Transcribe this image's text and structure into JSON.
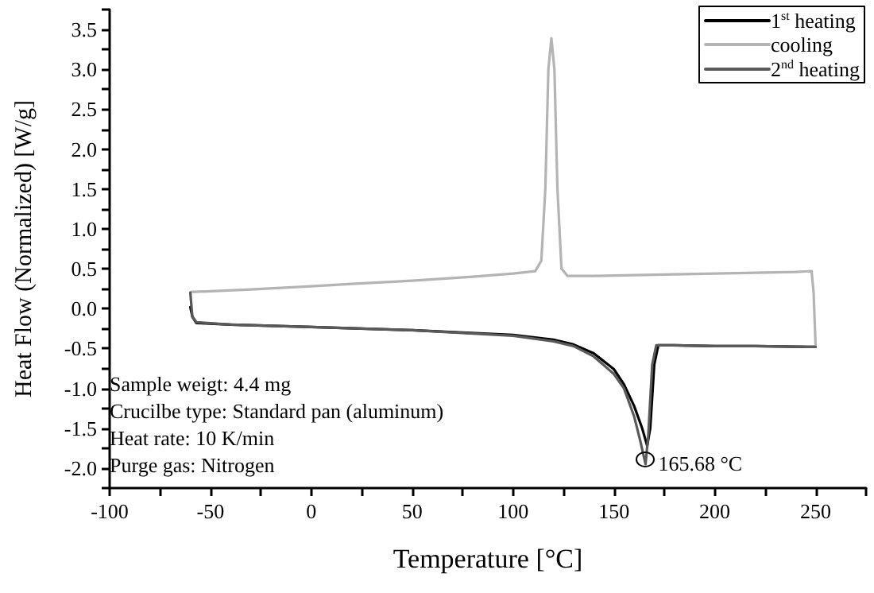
{
  "chart_data": {
    "type": "line",
    "xlabel": "Temperature [°C]",
    "ylabel": "Heat Flow (Normalized) [W/g]",
    "xlim": [
      -100,
      275
    ],
    "ylim": [
      -2.25,
      3.75
    ],
    "xticks": [
      -100,
      {
        "value": -75,
        "label": null
      },
      -50,
      {
        "value": -25,
        "label": null
      },
      0,
      {
        "value": 25,
        "label": null
      },
      50,
      {
        "value": 75,
        "label": null
      },
      100,
      {
        "value": 125,
        "label": null
      },
      150,
      {
        "value": 175,
        "label": null
      },
      200,
      {
        "value": 225,
        "label": null
      },
      250,
      {
        "value": 275,
        "label": null
      }
    ],
    "yticks": [
      {
        "value": -2.25,
        "label": null
      },
      {
        "value": -2,
        "label": "-2.0"
      },
      {
        "value": -1.75,
        "label": null
      },
      {
        "value": -1.5,
        "label": "-1.5"
      },
      {
        "value": -1.25,
        "label": null
      },
      {
        "value": -1,
        "label": "-1.0"
      },
      {
        "value": -0.75,
        "label": null
      },
      {
        "value": -0.5,
        "label": "-0.5"
      },
      {
        "value": -0.25,
        "label": null
      },
      {
        "value": 0,
        "label": "0.0"
      },
      {
        "value": 0.25,
        "label": null
      },
      {
        "value": 0.5,
        "label": "0.5"
      },
      {
        "value": 0.75,
        "label": null
      },
      {
        "value": 1,
        "label": "1.0"
      },
      {
        "value": 1.25,
        "label": null
      },
      {
        "value": 1.5,
        "label": "1.5"
      },
      {
        "value": 1.75,
        "label": null
      },
      {
        "value": 2,
        "label": "2.0"
      },
      {
        "value": 2.25,
        "label": null
      },
      {
        "value": 2.5,
        "label": "2.5"
      },
      {
        "value": 2.75,
        "label": null
      },
      {
        "value": 3,
        "label": "3.0"
      },
      {
        "value": 3.25,
        "label": null
      },
      {
        "value": 3.5,
        "label": "3.5"
      },
      {
        "value": 3.75,
        "label": null
      }
    ],
    "grid": false,
    "legend": "top right",
    "marker": "none",
    "line_style": "solid",
    "series": [
      {
        "name": "1$^{st}$ heating",
        "color": "#000000",
        "x": [
          -60,
          -59,
          -57,
          -40,
          0,
          50,
          100,
          120,
          130,
          140,
          150,
          155,
          160,
          164,
          166.5,
          168,
          170,
          172,
          180,
          200,
          220,
          249,
          250
        ],
        "values": [
          0.02,
          -0.1,
          -0.18,
          -0.2,
          -0.23,
          -0.27,
          -0.33,
          -0.39,
          -0.45,
          -0.56,
          -0.76,
          -0.95,
          -1.22,
          -1.5,
          -1.72,
          -1.5,
          -0.7,
          -0.46,
          -0.46,
          -0.47,
          -0.47,
          -0.48,
          -0.48
        ]
      },
      {
        "name": "cooling",
        "color": "#b4b4b4",
        "x": [
          250,
          249,
          248,
          240,
          220,
          200,
          180,
          160,
          140,
          127,
          124,
          122,
          120.5,
          119,
          117.5,
          116,
          114,
          111,
          100,
          80,
          50,
          20,
          0,
          -30,
          -58,
          -59.5
        ],
        "values": [
          -0.48,
          0.2,
          0.47,
          0.46,
          0.45,
          0.44,
          0.43,
          0.42,
          0.41,
          0.41,
          0.5,
          1.5,
          3.0,
          3.39,
          3.0,
          1.5,
          0.6,
          0.47,
          0.44,
          0.4,
          0.35,
          0.31,
          0.28,
          0.24,
          0.21,
          0.21
        ]
      },
      {
        "name": "2$^{nd}$ heating",
        "color": "#5a5a5a",
        "x": [
          -60,
          -59,
          -57,
          -40,
          0,
          50,
          100,
          120,
          130,
          140,
          150,
          155,
          160,
          163,
          165.68,
          167,
          169,
          171,
          180,
          200,
          220,
          249,
          250
        ],
        "values": [
          0.2,
          -0.1,
          -0.17,
          -0.2,
          -0.23,
          -0.27,
          -0.34,
          -0.41,
          -0.47,
          -0.6,
          -0.82,
          -1.0,
          -1.35,
          -1.65,
          -1.95,
          -1.6,
          -0.7,
          -0.46,
          -0.46,
          -0.47,
          -0.47,
          -0.48,
          -0.48
        ]
      }
    ],
    "annotations": [
      "Sample weigt: 4.4 mg",
      "Crucilbe type: Standard pan (aluminum)",
      "Heat rate: 10 K/min",
      "Purge gas: Nitrogen",
      {
        "text": "165.68 °C",
        "x": 165.68,
        "y": -1.98
      }
    ]
  }
}
